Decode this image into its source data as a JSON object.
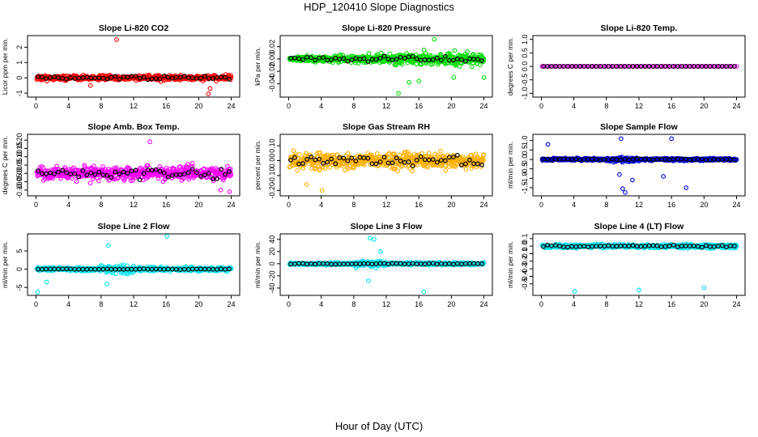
{
  "figure": {
    "title": "HDP_120410  Slope Diagnostics",
    "xlabel": "Hour of Day (UTC)"
  },
  "chart_data": [
    {
      "type": "scatter",
      "title": "Slope Li-820 CO2",
      "ylabel": "Licor ppm per min.",
      "xlim": [
        0,
        24
      ],
      "ylim": [
        -1.1,
        2.6
      ],
      "yticks": [
        -1,
        0,
        1,
        2
      ],
      "ytick_labels": [
        "-1",
        "0",
        "1",
        "2"
      ],
      "xticks": [
        0,
        4,
        8,
        12,
        16,
        20,
        24
      ],
      "xtick_labels": [
        "0",
        "4",
        "8",
        "12",
        "16",
        "20",
        "24"
      ],
      "color": "#ff0000",
      "noise": 0.18,
      "base": 0.0,
      "dense": true,
      "outliers": [
        [
          9.9,
          2.5
        ],
        [
          21.2,
          -1.05
        ],
        [
          21.4,
          -0.7
        ],
        [
          6.7,
          -0.5
        ]
      ],
      "black_noise": 0.12
    },
    {
      "type": "scatter",
      "title": "Slope Li-820 Pressure",
      "ylabel": "kPa per min.",
      "xlim": [
        0,
        24
      ],
      "ylim": [
        -0.058,
        0.034
      ],
      "yticks": [
        -0.04,
        -0.02,
        0.0,
        0.02
      ],
      "ytick_labels": [
        "-0.04",
        "-0.02",
        "0.00",
        "0.02"
      ],
      "xticks": [
        0,
        4,
        8,
        12,
        16,
        20,
        24
      ],
      "xtick_labels": [
        "0",
        "4",
        "8",
        "12",
        "16",
        "20",
        "24"
      ],
      "color": "#00dd00",
      "noise": 0.008,
      "base": 0.0,
      "dense": true,
      "grow": true,
      "outliers": [
        [
          13.5,
          -0.056
        ],
        [
          14.8,
          -0.038
        ],
        [
          20.3,
          -0.03
        ],
        [
          24.0,
          -0.03
        ],
        [
          17.9,
          0.032
        ],
        [
          16.0,
          -0.036
        ]
      ],
      "black_noise": 0.005
    },
    {
      "type": "scatter",
      "title": "Slope Li-820 Temp.",
      "ylabel": "degrees C per min.",
      "xlim": [
        0,
        24
      ],
      "ylim": [
        -1.05,
        1.05
      ],
      "yticks": [
        -1.0,
        -0.5,
        0.0,
        0.5,
        1.0
      ],
      "ytick_labels": [
        "-1.0",
        "-0.5",
        "0.0",
        "0.5",
        "1.0"
      ],
      "xticks": [
        0,
        4,
        8,
        12,
        16,
        20,
        24
      ],
      "xtick_labels": [
        "0",
        "4",
        "8",
        "12",
        "16",
        "20",
        "24"
      ],
      "color": "#ff00ff",
      "noise": 0.0,
      "base": 0.0,
      "dense": false,
      "flat": true,
      "outliers": [],
      "black_noise": 0.0
    },
    {
      "type": "scatter",
      "title": "Slope Amb. Box Temp.",
      "ylabel": "degrees C per min.",
      "xlim": [
        0,
        24
      ],
      "ylim": [
        -0.12,
        0.22
      ],
      "yticks": [
        -0.1,
        -0.05,
        0.0,
        0.05,
        0.1,
        0.15,
        0.2
      ],
      "ytick_labels": [
        "-0.10",
        "-0.05",
        "0.00",
        "0.05",
        "0.10",
        "0.15",
        "0.20"
      ],
      "xticks": [
        0,
        4,
        8,
        12,
        16,
        20,
        24
      ],
      "xtick_labels": [
        "0",
        "4",
        "8",
        "12",
        "16",
        "20",
        "24"
      ],
      "color": "#ff00ff",
      "noise": 0.045,
      "base": 0.0,
      "dense": true,
      "outliers": [
        [
          14.0,
          0.19
        ],
        [
          23.8,
          -0.11
        ],
        [
          22.7,
          -0.1
        ]
      ],
      "black_noise": 0.035
    },
    {
      "type": "scatter",
      "title": "Slope Gas Stream RH",
      "ylabel": "percent per min.",
      "xlim": [
        0,
        24
      ],
      "ylim": [
        -0.22,
        0.16
      ],
      "yticks": [
        -0.2,
        -0.1,
        0.0,
        0.1
      ],
      "ytick_labels": [
        "-0.20",
        "-0.10",
        "0.00",
        "0.10"
      ],
      "xticks": [
        0,
        4,
        8,
        12,
        16,
        20,
        24
      ],
      "xtick_labels": [
        "0",
        "4",
        "8",
        "12",
        "16",
        "20",
        "24"
      ],
      "color": "#ffb000",
      "noise": 0.06,
      "base": 0.0,
      "dense": true,
      "outliers": [
        [
          4.1,
          -0.2
        ],
        [
          2.2,
          -0.16
        ]
      ],
      "black_noise": 0.04
    },
    {
      "type": "scatter",
      "title": "Slope Sample Flow",
      "ylabel": "ml/min per min.",
      "xlim": [
        0,
        24
      ],
      "ylim": [
        -1.8,
        1.2
      ],
      "yticks": [
        -1.5,
        -1.0,
        -0.5,
        0.0,
        0.5,
        1.0
      ],
      "ytick_labels": [
        "-1.5",
        "-1.0",
        "-0.5",
        "0.0",
        "0.5",
        "1.0"
      ],
      "xticks": [
        0,
        4,
        8,
        12,
        16,
        20,
        24
      ],
      "xtick_labels": [
        "0",
        "4",
        "8",
        "12",
        "16",
        "20",
        "24"
      ],
      "color": "#0000dd",
      "noise": 0.07,
      "base": 0.0,
      "dense": true,
      "spikes": true,
      "outliers": [
        [
          10.0,
          -1.55
        ],
        [
          10.3,
          -1.75
        ],
        [
          11.2,
          -1.1
        ],
        [
          9.6,
          -0.8
        ],
        [
          17.8,
          -1.5
        ],
        [
          9.8,
          1.1
        ],
        [
          16.0,
          1.1
        ],
        [
          0.8,
          0.8
        ],
        [
          15.0,
          -0.9
        ]
      ],
      "black_noise": 0.04
    },
    {
      "type": "scatter",
      "title": "Slope Line 2 Flow",
      "ylabel": "ml/min per min.",
      "xlim": [
        0,
        24
      ],
      "ylim": [
        -6.5,
        9
      ],
      "yticks": [
        -5,
        0,
        5
      ],
      "ytick_labels": [
        "-5",
        "0",
        "5"
      ],
      "xticks": [
        0,
        4,
        8,
        12,
        16,
        20,
        24
      ],
      "xtick_labels": [
        "0",
        "4",
        "8",
        "12",
        "16",
        "20",
        "24"
      ],
      "color": "#00e5ee",
      "noise": 0.6,
      "base": 0.0,
      "dense": true,
      "spikes": true,
      "outliers": [
        [
          0.2,
          -6.3
        ],
        [
          16.1,
          9.0
        ],
        [
          8.9,
          6.5
        ],
        [
          8.7,
          -4.0
        ],
        [
          1.3,
          -3.5
        ]
      ],
      "black_noise": 0.1
    },
    {
      "type": "scatter",
      "title": "Slope Line 3 Flow",
      "ylabel": "ml/min per min.",
      "xlim": [
        0,
        24
      ],
      "ylim": [
        -48,
        45
      ],
      "yticks": [
        -40,
        -20,
        0,
        20,
        40
      ],
      "ytick_labels": [
        "-40",
        "-20",
        "0",
        "20",
        "40"
      ],
      "xticks": [
        0,
        4,
        8,
        12,
        16,
        20,
        24
      ],
      "xtick_labels": [
        "0",
        "4",
        "8",
        "12",
        "16",
        "20",
        "24"
      ],
      "color": "#00e5ee",
      "noise": 2.5,
      "base": 0.0,
      "dense": true,
      "spikes": true,
      "outliers": [
        [
          16.6,
          -46
        ],
        [
          10.0,
          42
        ],
        [
          10.5,
          40
        ],
        [
          9.8,
          -28
        ],
        [
          11.3,
          20
        ]
      ],
      "black_noise": 1.0
    },
    {
      "type": "scatter",
      "title": "Slope Line 4 (LT) Flow",
      "ylabel": "ml/min per min.",
      "xlim": [
        0,
        24
      ],
      "ylim": [
        -0.62,
        0.13
      ],
      "yticks": [
        -0.5,
        -0.4,
        -0.3,
        -0.2,
        -0.1,
        0.0,
        0.1
      ],
      "ytick_labels": [
        "-0.5",
        "-0.4",
        "-0.3",
        "-0.2",
        "-0.1",
        "0.0",
        "0.1"
      ],
      "xticks": [
        0,
        4,
        8,
        12,
        16,
        20,
        24
      ],
      "xtick_labels": [
        "0",
        "4",
        "8",
        "12",
        "16",
        "20",
        "24"
      ],
      "color": "#00e5ee",
      "noise": 0.03,
      "base": 0.0,
      "dense": true,
      "outliers": [
        [
          4.1,
          -0.6
        ],
        [
          12.0,
          -0.58
        ],
        [
          20.0,
          -0.55
        ]
      ],
      "black_noise": 0.015
    }
  ]
}
